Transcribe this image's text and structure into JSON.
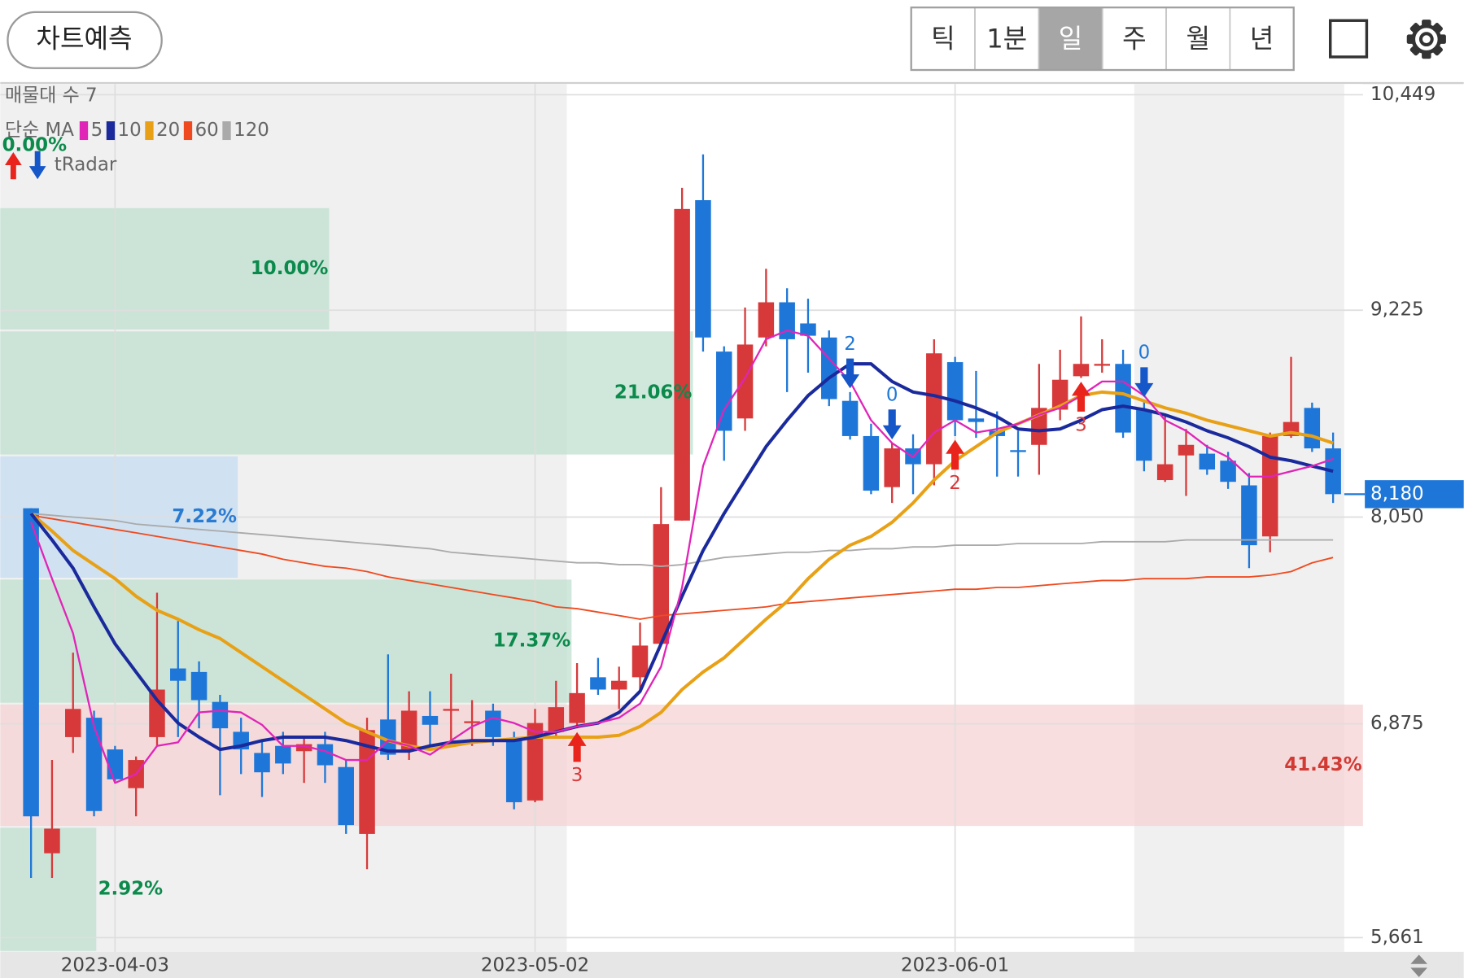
{
  "toolbar": {
    "predict_button": "차트예측",
    "periods": [
      "틱",
      "1분",
      "일",
      "주",
      "월",
      "년"
    ],
    "selected_period": 2
  },
  "chart_data": {
    "type": "candlestick",
    "legend": {
      "profile_label": "매물대 수 7",
      "ma_label": "단순 MA",
      "signal_label": "tRadar"
    },
    "categories": [
      null,
      null,
      null,
      null,
      "2023-04-03",
      null,
      null,
      null,
      null,
      null,
      null,
      null,
      null,
      null,
      null,
      null,
      null,
      null,
      null,
      null,
      null,
      null,
      null,
      null,
      "2023-05-02",
      null,
      null,
      null,
      null,
      null,
      null,
      null,
      null,
      null,
      null,
      null,
      null,
      null,
      null,
      null,
      null,
      null,
      null,
      null,
      "2023-06-01",
      null,
      null,
      null,
      null,
      null,
      null,
      null,
      null,
      null,
      null,
      null,
      null,
      null,
      null,
      null,
      null,
      null,
      null
    ],
    "open": [
      8100,
      6140,
      6800,
      6910,
      6730,
      6510,
      6800,
      7190,
      7170,
      7000,
      6830,
      6710,
      6750,
      6720,
      6760,
      6630,
      6250,
      6900,
      6720,
      6920,
      6950,
      6880,
      6950,
      6790,
      6440,
      6830,
      6880,
      7140,
      7070,
      7140,
      7330,
      8030,
      9850,
      8990,
      8610,
      9070,
      9270,
      9150,
      9070,
      8710,
      8510,
      8220,
      8440,
      8350,
      8930,
      8610,
      8540,
      8430,
      8460,
      8660,
      8850,
      8910,
      8920,
      8660,
      8260,
      8400,
      8410,
      8370,
      8230,
      7940,
      8510,
      8670,
      8440
    ],
    "high": [
      8100,
      6670,
      7280,
      6950,
      6750,
      6690,
      7620,
      7460,
      7230,
      7040,
      6910,
      6780,
      6830,
      6800,
      6830,
      6670,
      6910,
      7270,
      7060,
      7060,
      7160,
      7010,
      6990,
      6830,
      6960,
      7120,
      7220,
      7250,
      7200,
      7450,
      8220,
      9920,
      10110,
      9020,
      9240,
      9460,
      9350,
      9290,
      9110,
      8760,
      8580,
      8470,
      8520,
      9060,
      8960,
      8880,
      8650,
      8540,
      8920,
      9000,
      9190,
      9060,
      9000,
      8710,
      8630,
      8550,
      8460,
      8420,
      8300,
      8530,
      8960,
      8700,
      8530
    ],
    "low": [
      6000,
      6000,
      6710,
      6350,
      6550,
      6350,
      6750,
      6800,
      6850,
      6470,
      6590,
      6460,
      6590,
      6540,
      6540,
      6250,
      6050,
      6670,
      6670,
      6750,
      6780,
      6750,
      6750,
      6390,
      6430,
      6800,
      6850,
      7040,
      6960,
      7070,
      7330,
      8030,
      8990,
      8370,
      8540,
      9020,
      8760,
      8870,
      8680,
      8490,
      8180,
      8130,
      8180,
      8230,
      8510,
      8500,
      8280,
      8280,
      8290,
      8600,
      8840,
      8870,
      8500,
      8310,
      8250,
      8170,
      8290,
      8210,
      7760,
      7850,
      8500,
      8420,
      8130
    ],
    "close": [
      6350,
      6280,
      6960,
      6380,
      6560,
      6670,
      7070,
      7120,
      7010,
      6850,
      6730,
      6600,
      6650,
      6760,
      6640,
      6300,
      6840,
      6700,
      6950,
      6870,
      6960,
      6890,
      6800,
      6430,
      6880,
      6970,
      7050,
      7070,
      7120,
      7320,
      8010,
      9800,
      9070,
      8540,
      9030,
      9270,
      9060,
      9080,
      8720,
      8510,
      8200,
      8440,
      8350,
      8980,
      8600,
      8590,
      8510,
      8420,
      8670,
      8830,
      8920,
      8920,
      8530,
      8370,
      8350,
      8460,
      8320,
      8250,
      7890,
      8510,
      8590,
      8440,
      8180
    ],
    "up_color": "#d7393a",
    "down_color": "#1e77d8",
    "series": [
      {
        "name": "5",
        "color": "#e024b8",
        "values": [
          8020,
          7700,
          7390,
          6860,
          6540,
          6590,
          6750,
          6770,
          6940,
          6950,
          6940,
          6870,
          6750,
          6750,
          6720,
          6670,
          6670,
          6780,
          6750,
          6700,
          6780,
          6860,
          6910,
          6880,
          6830,
          6830,
          6860,
          6880,
          6910,
          6990,
          7200,
          7650,
          8340,
          8660,
          8840,
          9060,
          9110,
          9080,
          8950,
          8820,
          8600,
          8470,
          8390,
          8530,
          8600,
          8530,
          8550,
          8580,
          8630,
          8670,
          8740,
          8820,
          8820,
          8740,
          8600,
          8540,
          8450,
          8390,
          8280,
          8280,
          8310,
          8340,
          8380
        ]
      },
      {
        "name": "10",
        "color": "#1a2a9c",
        "values": [
          8070,
          7920,
          7760,
          7540,
          7330,
          7170,
          7010,
          6880,
          6800,
          6730,
          6750,
          6780,
          6800,
          6800,
          6800,
          6780,
          6750,
          6720,
          6720,
          6750,
          6770,
          6780,
          6780,
          6780,
          6800,
          6830,
          6860,
          6880,
          6940,
          7060,
          7330,
          7600,
          7860,
          8070,
          8260,
          8450,
          8600,
          8740,
          8840,
          8920,
          8920,
          8820,
          8760,
          8740,
          8710,
          8670,
          8620,
          8550,
          8540,
          8550,
          8600,
          8660,
          8680,
          8660,
          8630,
          8590,
          8540,
          8500,
          8450,
          8390,
          8370,
          8340,
          8310
        ]
      },
      {
        "name": "20",
        "color": "#e8a116",
        "values": [
          8070,
          7970,
          7860,
          7780,
          7700,
          7600,
          7520,
          7470,
          7410,
          7360,
          7280,
          7200,
          7120,
          7040,
          6960,
          6880,
          6830,
          6780,
          6750,
          6730,
          6750,
          6770,
          6780,
          6790,
          6800,
          6800,
          6800,
          6800,
          6810,
          6860,
          6940,
          7070,
          7170,
          7250,
          7360,
          7470,
          7570,
          7700,
          7810,
          7890,
          7940,
          8020,
          8130,
          8260,
          8370,
          8450,
          8530,
          8580,
          8630,
          8680,
          8740,
          8760,
          8750,
          8710,
          8670,
          8640,
          8600,
          8570,
          8540,
          8510,
          8530,
          8510,
          8470
        ]
      },
      {
        "name": "60",
        "color": "#ef4a1f",
        "values": [
          8060,
          8040,
          8020,
          8000,
          7980,
          7960,
          7940,
          7920,
          7900,
          7880,
          7860,
          7840,
          7810,
          7790,
          7770,
          7760,
          7740,
          7710,
          7690,
          7670,
          7650,
          7630,
          7610,
          7590,
          7570,
          7540,
          7530,
          7510,
          7490,
          7470,
          7490,
          7500,
          7510,
          7520,
          7530,
          7540,
          7560,
          7570,
          7580,
          7590,
          7600,
          7610,
          7620,
          7630,
          7640,
          7640,
          7650,
          7650,
          7660,
          7670,
          7680,
          7690,
          7690,
          7700,
          7700,
          7700,
          7710,
          7710,
          7710,
          7720,
          7740,
          7790,
          7820
        ]
      },
      {
        "name": "120",
        "color": "#aaaaaa",
        "values": [
          8070,
          8060,
          8050,
          8040,
          8030,
          8010,
          8000,
          7990,
          7980,
          7970,
          7960,
          7950,
          7940,
          7930,
          7920,
          7910,
          7900,
          7890,
          7880,
          7870,
          7850,
          7840,
          7830,
          7820,
          7810,
          7800,
          7790,
          7790,
          7780,
          7780,
          7770,
          7780,
          7800,
          7820,
          7830,
          7840,
          7850,
          7850,
          7860,
          7860,
          7870,
          7870,
          7880,
          7880,
          7890,
          7890,
          7890,
          7900,
          7900,
          7900,
          7900,
          7910,
          7910,
          7910,
          7910,
          7920,
          7920,
          7920,
          7920,
          7920,
          7920,
          7920,
          7920
        ]
      }
    ],
    "ylim": [
      5580,
      10510
    ],
    "yticks": [
      {
        "value": 5661,
        "label": "5,661"
      },
      {
        "value": 6875,
        "label": "6,875"
      },
      {
        "value": 8050,
        "label": "8,050"
      },
      {
        "value": 9225,
        "label": "9,225"
      },
      {
        "value": 10449,
        "label": "10,449"
      }
    ],
    "grid": true,
    "last_price": {
      "value": 8180,
      "label": "8,180",
      "color": "#1e77d8"
    },
    "volume_profile": {
      "bins": [
        5580,
        6290,
        6990,
        7700,
        8400,
        9110,
        9810,
        10510
      ],
      "values": [
        2.92,
        41.43,
        17.37,
        7.22,
        21.06,
        10,
        0
      ],
      "value_labels": [
        "2.92%",
        "41.43%",
        "17.37%",
        "7.22%",
        "21.06%",
        "10.00%",
        "0.00%"
      ],
      "colors": [
        "#bfe0cf",
        "#f6d3d3",
        "#bfe0cf",
        "#c6dcf2",
        "#bfe0cf",
        "#bfe0cf",
        "#bfe0cf"
      ],
      "label_colors": [
        "#0b8a4c",
        "#d23a34",
        "#0b8a4c",
        "#2a7bd2",
        "#0b8a4c",
        "#0b8a4c",
        "#0b8a4c"
      ]
    },
    "signals": [
      {
        "index": 26,
        "arrow": "up",
        "color": "#e8241c",
        "label": "3"
      },
      {
        "index": 39,
        "arrow": "down",
        "color": "#1556c8",
        "label": "2"
      },
      {
        "index": 41,
        "arrow": "down",
        "color": "#1556c8",
        "label": "0"
      },
      {
        "index": 44,
        "arrow": "up",
        "color": "#e8241c",
        "label": "2"
      },
      {
        "index": 50,
        "arrow": "up",
        "color": "#e8241c",
        "label": "3"
      },
      {
        "index": 53,
        "arrow": "down",
        "color": "#1556c8",
        "label": "0"
      }
    ]
  }
}
